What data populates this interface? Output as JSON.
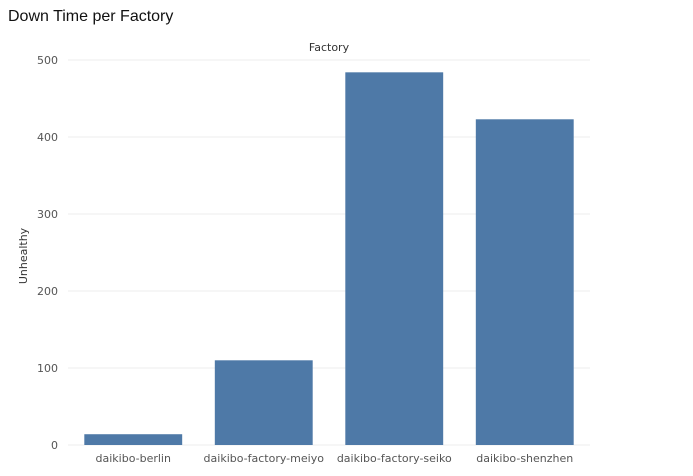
{
  "page_title": "Down Time per Factory",
  "chart_data": {
    "type": "bar",
    "title": "Down Time per Factory",
    "column_header": "Factory",
    "xlabel": "",
    "ylabel": "Unhealthy",
    "categories": [
      "daikibo-berlin",
      "daikibo-factory-meiyo",
      "daikibo-factory-seiko",
      "daikibo-shenzhen"
    ],
    "values": [
      14,
      110,
      484,
      423
    ],
    "ylim": [
      0,
      500
    ],
    "yticks": [
      "0",
      "100",
      "200",
      "300",
      "400",
      "500"
    ],
    "grid": true,
    "legend": "none",
    "bar_color": "#4e79a7"
  }
}
